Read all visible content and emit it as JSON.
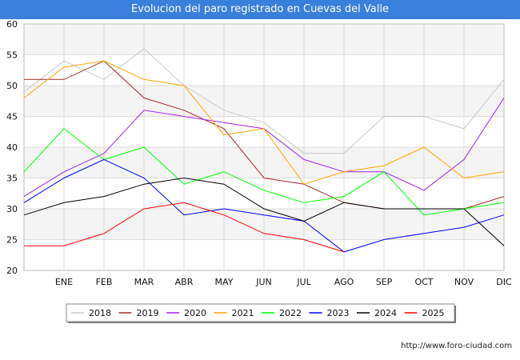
{
  "chart_data": {
    "type": "line",
    "title": "Evolucion del paro registrado en Cuevas del Valle",
    "categories": [
      "",
      "ENE",
      "FEB",
      "MAR",
      "ABR",
      "MAY",
      "JUN",
      "JUL",
      "AGO",
      "SEP",
      "OCT",
      "NOV",
      "DIC"
    ],
    "ylim": [
      20,
      60
    ],
    "yticks": [
      20,
      25,
      30,
      35,
      40,
      45,
      50,
      55,
      60
    ],
    "series": [
      {
        "name": "2018",
        "color": "#c8c8c8",
        "values": [
          49,
          54,
          51,
          56,
          50,
          46,
          44,
          39,
          39,
          45,
          45,
          43,
          51
        ]
      },
      {
        "name": "2019",
        "color": "#a52a2a",
        "values": [
          51,
          51,
          54,
          48,
          46,
          43,
          35,
          34,
          31,
          30,
          30,
          30,
          32
        ]
      },
      {
        "name": "2020",
        "color": "#a020f0",
        "values": [
          32,
          36,
          39,
          46,
          45,
          44,
          43,
          38,
          36,
          36,
          33,
          38,
          48
        ]
      },
      {
        "name": "2021",
        "color": "#ffa500",
        "values": [
          48,
          53,
          54,
          51,
          50,
          42,
          43,
          34,
          36,
          37,
          40,
          35,
          36
        ]
      },
      {
        "name": "2022",
        "color": "#00ff00",
        "values": [
          36,
          43,
          38,
          40,
          34,
          36,
          33,
          31,
          32,
          36,
          29,
          30,
          31
        ]
      },
      {
        "name": "2023",
        "color": "#0000ff",
        "values": [
          31,
          35,
          38,
          35,
          29,
          30,
          29,
          28,
          23,
          25,
          26,
          27,
          29
        ]
      },
      {
        "name": "2024",
        "color": "#000000",
        "values": [
          29,
          31,
          32,
          34,
          35,
          34,
          30,
          28,
          31,
          30,
          30,
          30,
          24
        ]
      },
      {
        "name": "2025",
        "color": "#ff0000",
        "values": [
          24,
          24,
          26,
          30,
          31,
          29,
          26,
          25,
          23,
          null,
          null,
          null,
          null
        ]
      }
    ],
    "source": "http://www.foro-ciudad.com"
  }
}
